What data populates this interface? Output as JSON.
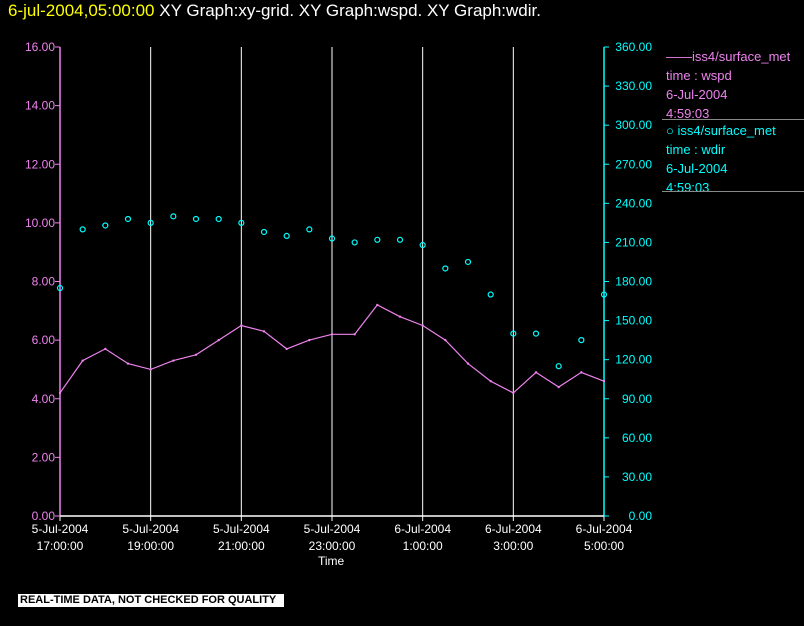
{
  "header": {
    "date_text": "6-jul-2004,05:00:00",
    "graphs_text": "XY Graph:xy-grid.  XY Graph:wspd.  XY Graph:wdir."
  },
  "legend": {
    "wspd": {
      "line1": "——iss4/surface_met",
      "line2": "time : wspd",
      "line3": "6-Jul-2004",
      "line4": "4:59:03"
    },
    "wdir": {
      "line1": "○ iss4/surface_met",
      "line2": "time : wdir",
      "line3": "6-Jul-2004",
      "line4": "4:59:03"
    }
  },
  "disclaimer": "REAL-TIME DATA, NOT CHECKED FOR QUALITY",
  "colors": {
    "wspd": "#ee82ee",
    "wdir": "#00ffff",
    "grid": "#ffffff",
    "title_date": "#ffff00"
  },
  "chart_data": {
    "type": "line",
    "xlabel": "Time",
    "x_ticks": [
      {
        "l1": "5-Jul-2004",
        "l2": "17:00:00"
      },
      {
        "l1": "5-Jul-2004",
        "l2": "19:00:00"
      },
      {
        "l1": "5-Jul-2004",
        "l2": "21:00:00"
      },
      {
        "l1": "5-Jul-2004",
        "l2": "23:00:00"
      },
      {
        "l1": "6-Jul-2004",
        "l2": "1:00:00"
      },
      {
        "l1": "6-Jul-2004",
        "l2": "3:00:00"
      },
      {
        "l1": "6-Jul-2004",
        "l2": "5:00:00"
      }
    ],
    "xlim": [
      "2004-07-05 17:00:00",
      "2004-07-06 05:00:00"
    ],
    "y_left": {
      "ylim": [
        0,
        16
      ],
      "ticks": [
        "0.00",
        "2.00",
        "4.00",
        "6.00",
        "8.00",
        "10.00",
        "12.00",
        "14.00",
        "16.00"
      ],
      "color": "#ee82ee"
    },
    "y_right": {
      "ylim": [
        0,
        360
      ],
      "ticks": [
        "0.00",
        "30.00",
        "60.00",
        "90.00",
        "120.00",
        "150.00",
        "180.00",
        "210.00",
        "240.00",
        "270.00",
        "300.00",
        "330.00",
        "360.00"
      ],
      "color": "#00ffff"
    },
    "vertical_grid": true,
    "series": [
      {
        "name": "iss4/surface_met time : wspd",
        "axis": "left",
        "style": "line",
        "x": [
          "2004-07-05 17:00",
          "2004-07-05 17:30",
          "2004-07-05 18:00",
          "2004-07-05 18:30",
          "2004-07-05 19:00",
          "2004-07-05 19:30",
          "2004-07-05 20:00",
          "2004-07-05 20:30",
          "2004-07-05 21:00",
          "2004-07-05 21:30",
          "2004-07-05 22:00",
          "2004-07-05 22:30",
          "2004-07-05 23:00",
          "2004-07-05 23:30",
          "2004-07-06 00:00",
          "2004-07-06 00:30",
          "2004-07-06 01:00",
          "2004-07-06 01:30",
          "2004-07-06 02:00",
          "2004-07-06 02:30",
          "2004-07-06 03:00",
          "2004-07-06 03:30",
          "2004-07-06 04:00",
          "2004-07-06 04:30",
          "2004-07-06 05:00"
        ],
        "y": [
          4.2,
          5.3,
          5.7,
          5.2,
          5.0,
          5.3,
          5.5,
          6.0,
          6.5,
          6.3,
          5.7,
          6.0,
          6.2,
          6.2,
          7.2,
          6.8,
          6.5,
          6.0,
          5.2,
          4.6,
          4.2,
          4.9,
          4.4,
          4.9,
          4.6
        ]
      },
      {
        "name": "iss4/surface_met time : wdir",
        "axis": "right",
        "style": "markers",
        "x": [
          "2004-07-05 17:00",
          "2004-07-05 17:30",
          "2004-07-05 18:00",
          "2004-07-05 18:30",
          "2004-07-05 19:00",
          "2004-07-05 19:30",
          "2004-07-05 20:00",
          "2004-07-05 20:30",
          "2004-07-05 21:00",
          "2004-07-05 21:30",
          "2004-07-05 22:00",
          "2004-07-05 22:30",
          "2004-07-05 23:00",
          "2004-07-05 23:30",
          "2004-07-06 00:00",
          "2004-07-06 00:30",
          "2004-07-06 01:00",
          "2004-07-06 01:30",
          "2004-07-06 02:00",
          "2004-07-06 02:30",
          "2004-07-06 03:00",
          "2004-07-06 03:30",
          "2004-07-06 04:00",
          "2004-07-06 04:30",
          "2004-07-06 05:00"
        ],
        "y": [
          175,
          220,
          223,
          228,
          225,
          230,
          228,
          228,
          225,
          218,
          215,
          220,
          213,
          210,
          212,
          212,
          208,
          190,
          195,
          170,
          140,
          140,
          115,
          135,
          170
        ]
      }
    ]
  }
}
